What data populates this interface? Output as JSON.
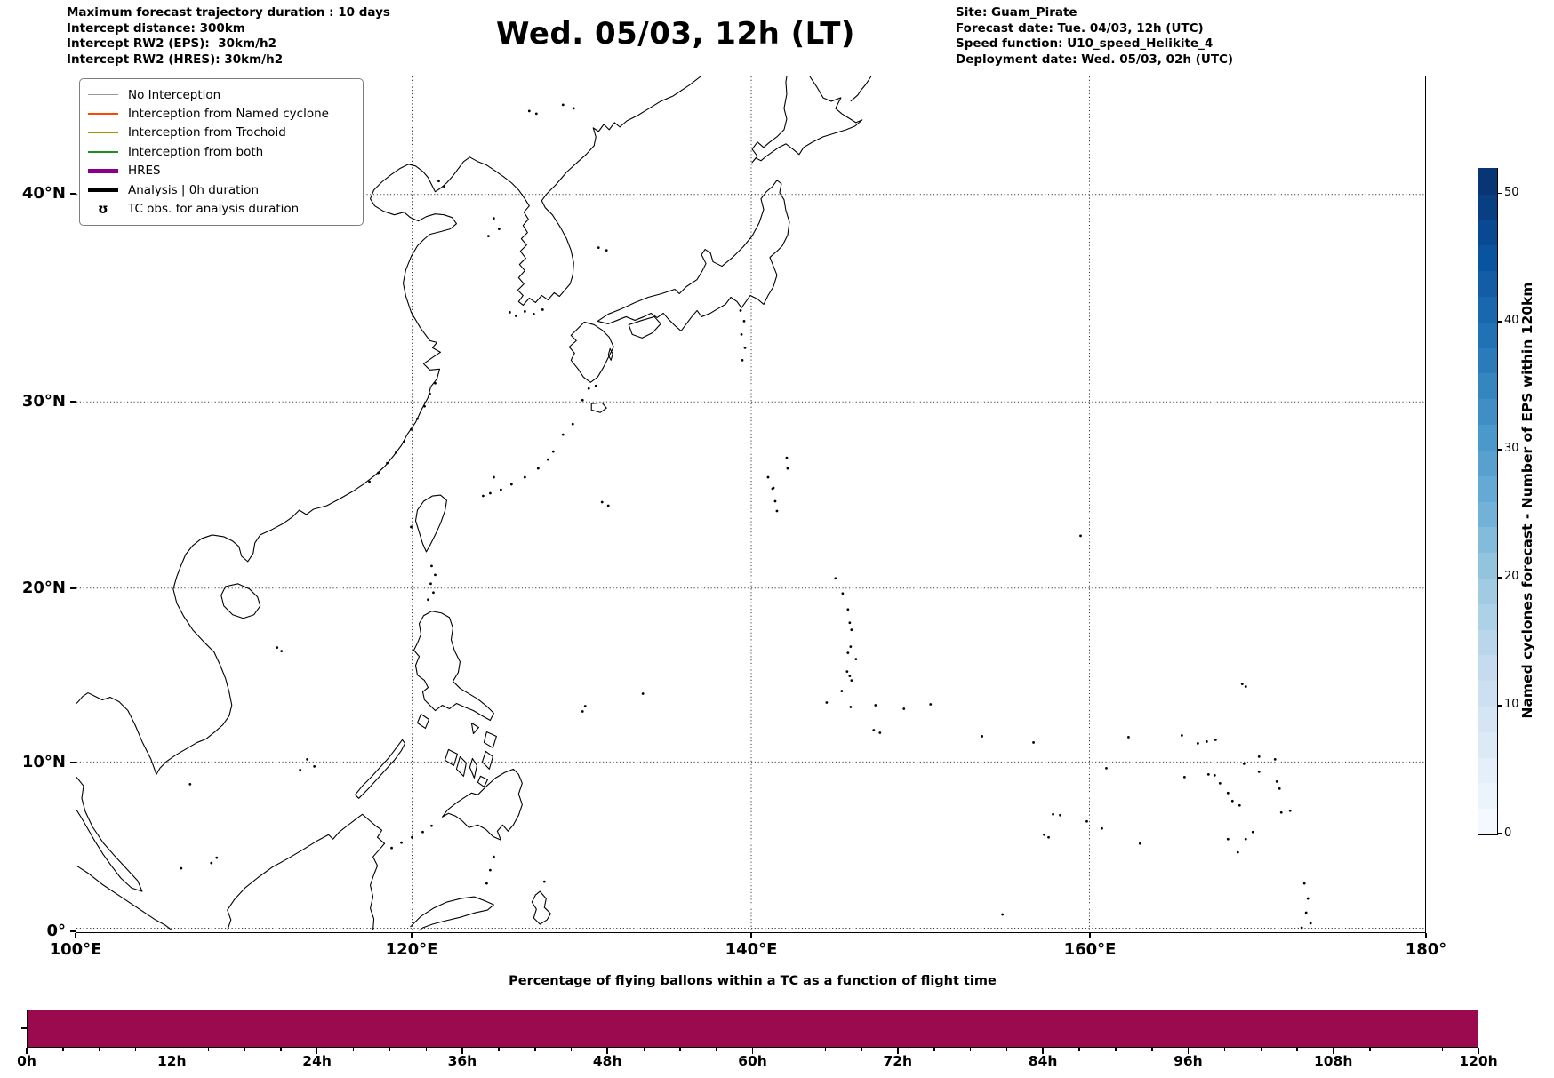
{
  "header": {
    "left_lines": [
      "Maximum forecast trajectory duration : 10 days",
      "Intercept distance: 300km",
      "Intercept RW2 (EPS):  30km/h2",
      "Intercept RW2 (HRES): 30km/h2"
    ],
    "title": "Wed. 05/03, 12h (LT)",
    "right_lines": [
      "Site: Guam_Pirate",
      "Forecast date: Tue. 04/03, 12h (UTC)",
      "Speed function: U10_speed_Helikite_4",
      "Deployment date: Wed. 05/03, 02h (UTC)"
    ]
  },
  "map": {
    "y_tick_labels": [
      "40°N",
      "30°N",
      "20°N",
      "10°N",
      "0°"
    ],
    "x_tick_labels": [
      "100°E",
      "120°E",
      "140°E",
      "160°E",
      "180°"
    ],
    "legend_items": [
      {
        "label": "No Interception",
        "color": "#999999",
        "line_width": 1.5,
        "glyph": "line"
      },
      {
        "label": "Interception from Named cyclone",
        "color": "#ff4500",
        "line_width": 1.5,
        "glyph": "line"
      },
      {
        "label": "Interception from Trochoid",
        "color": "#a09600",
        "line_width": 1.5,
        "glyph": "line"
      },
      {
        "label": "Interception from both",
        "color": "#1e8f1e",
        "line_width": 1.5,
        "glyph": "line"
      },
      {
        "label": "HRES",
        "color": "#8a008a",
        "line_width": 4.5,
        "glyph": "line"
      },
      {
        "label": "Analysis | 0h duration",
        "color": "#000000",
        "line_width": 4.5,
        "glyph": "line"
      },
      {
        "label": "TC obs. for analysis duration",
        "color": "#000000",
        "glyph": "symbol",
        "symbol": "ʊ"
      }
    ]
  },
  "colorbar": {
    "label": "Named cyclones forecast - Number of EPS within 120km",
    "tick_labels": [
      "0",
      "10",
      "20",
      "30",
      "40",
      "50"
    ],
    "tick_values": [
      0,
      10,
      20,
      30,
      40,
      50
    ],
    "min": 0,
    "max": 52,
    "segments": 26,
    "gradient_anchors": [
      "#f7fbff",
      "#deebf7",
      "#c6dbef",
      "#9ecae1",
      "#6baed6",
      "#4292c6",
      "#2171b5",
      "#08519c",
      "#08306b"
    ]
  },
  "bottom_chart": {
    "title": "Percentage of flying ballons within a TC as a function of flight time",
    "bar_color": "#9b0a4e",
    "x_tick_labels": [
      "0h",
      "12h",
      "24h",
      "36h",
      "48h",
      "60h",
      "72h",
      "84h",
      "96h",
      "108h",
      "120h"
    ]
  },
  "chart_data": {
    "type": "bar",
    "title": "Percentage of flying ballons within a TC as a function of flight time",
    "categories": [
      "0h",
      "12h",
      "24h",
      "36h",
      "48h",
      "60h",
      "72h",
      "84h",
      "96h",
      "108h",
      "120h"
    ],
    "values": [
      100,
      100,
      100,
      100,
      100,
      100,
      100,
      100,
      100,
      100,
      100
    ],
    "xlabel": "",
    "ylabel": "",
    "ylim": [
      0,
      100
    ],
    "grid": false,
    "legend_position": "none",
    "bar_color": "#9b0a4e",
    "note_visible_content": "single solid bar filling the whole 0h-120h axis at constant full height"
  }
}
